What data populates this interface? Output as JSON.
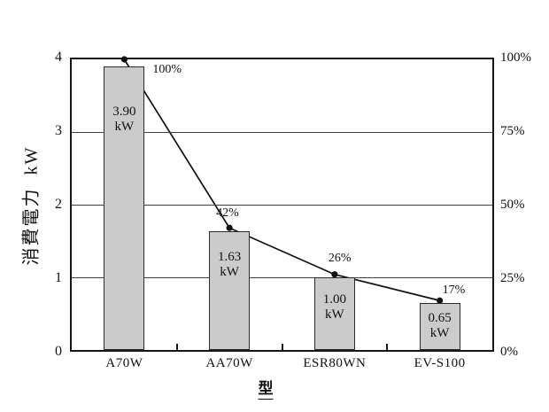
{
  "chart_data": {
    "type": "bar",
    "title": "",
    "categories": [
      "A70W",
      "AA70W",
      "ESR80WN",
      "EV-S100"
    ],
    "series": [
      {
        "name": "consumption-kw",
        "type": "bar",
        "unit": "kW",
        "values": [
          3.9,
          1.63,
          1.0,
          0.65
        ],
        "value_labels": [
          "3.90\nkW",
          "1.63\nkW",
          "1.00\nkW",
          "0.65\nkW"
        ]
      },
      {
        "name": "percentage",
        "type": "line",
        "unit": "%",
        "values": [
          100,
          42,
          26,
          17
        ],
        "value_labels": [
          "100%",
          "42%",
          "26%",
          "17%"
        ]
      }
    ],
    "y_left": {
      "title": "消費電力  kW",
      "ticks": [
        "4",
        "3",
        "2",
        "1",
        "0"
      ],
      "range": [
        0,
        4
      ]
    },
    "y_right": {
      "ticks": [
        "100%",
        "75%",
        "50%",
        "25%",
        "0%"
      ],
      "range": [
        0,
        100
      ]
    },
    "xlabel": "型",
    "grid": "horizontal",
    "legend": "none",
    "colors": {
      "bar_fill": "#cbcbcb",
      "bar_border": "#2a2a2a",
      "line": "#111111",
      "marker": "#111111",
      "grid": "#3f3f3f",
      "axis": "#151515",
      "background": "#ffffff",
      "text": "#111111"
    }
  }
}
